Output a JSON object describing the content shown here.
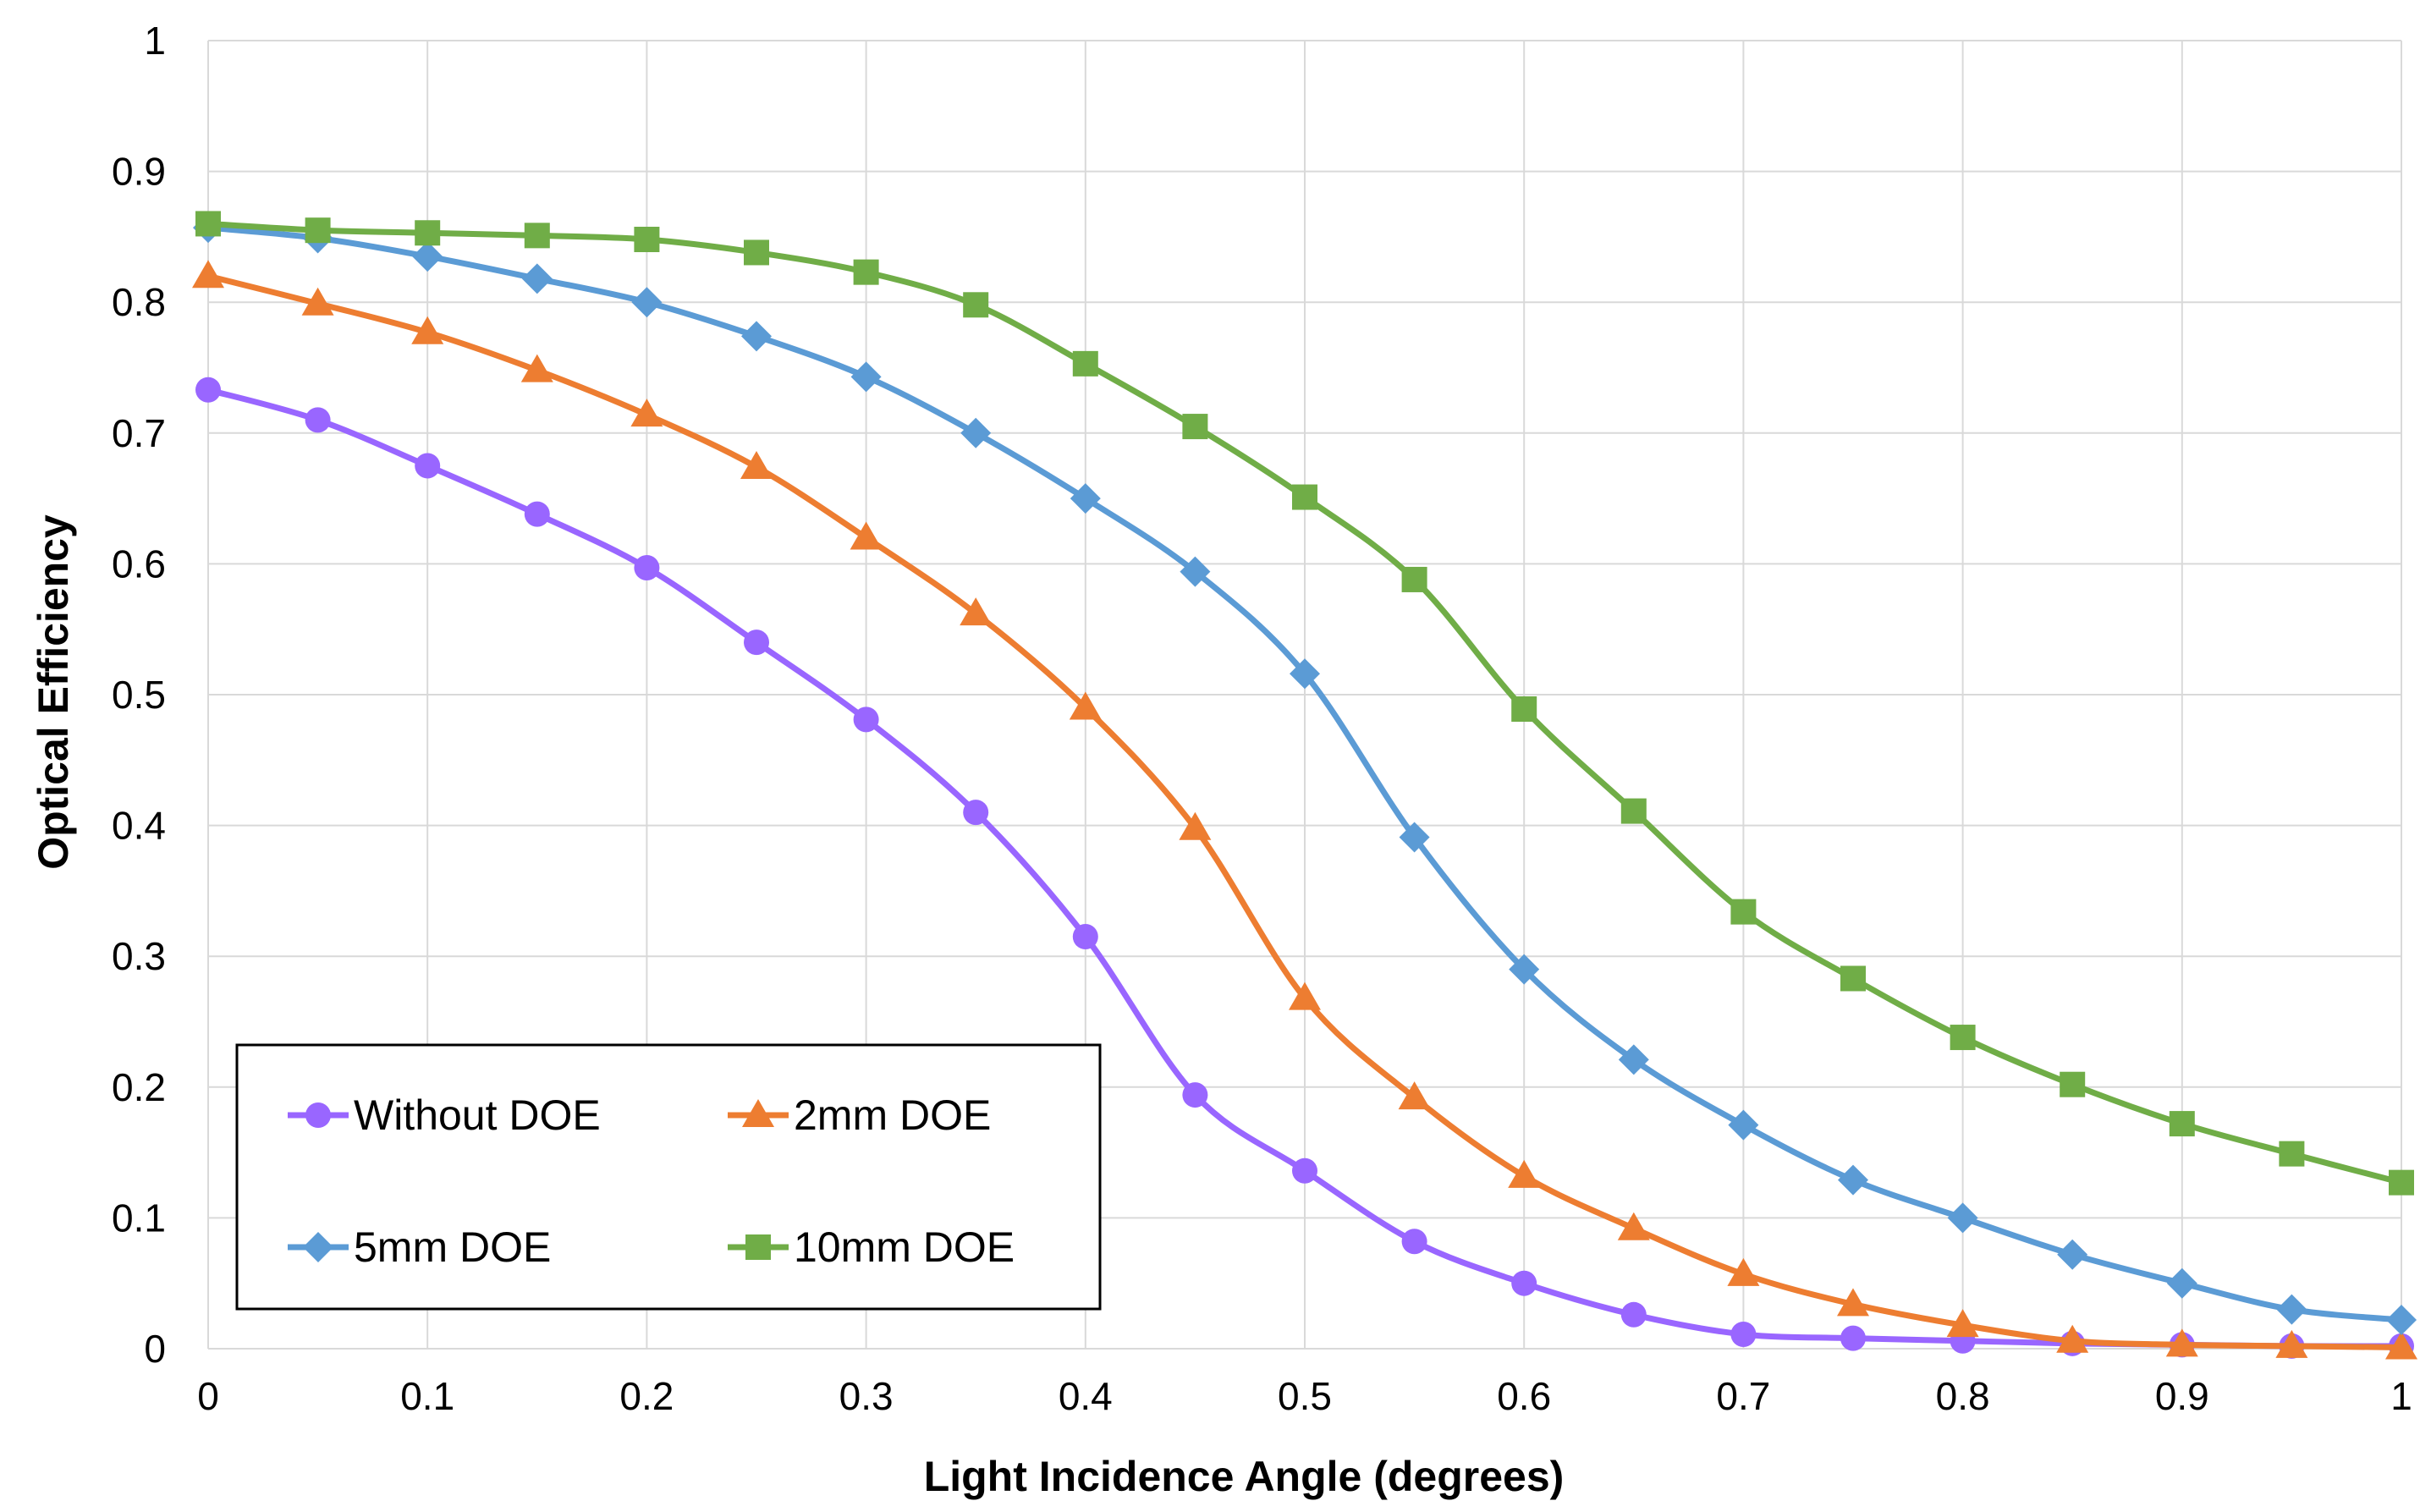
{
  "chart_data": {
    "type": "line",
    "title": "",
    "xlabel": "Light Incidence Angle (degrees)",
    "ylabel": "Optical Efficiency",
    "xlim": [
      0,
      1
    ],
    "ylim": [
      0,
      1
    ],
    "grid": true,
    "legend_position": "bottom-left",
    "x": [
      0,
      0.05,
      0.1,
      0.15,
      0.2,
      0.25,
      0.3,
      0.35,
      0.4,
      0.45,
      0.5,
      0.55,
      0.6,
      0.65,
      0.7,
      0.75,
      0.8,
      0.85,
      0.9,
      0.95,
      1
    ],
    "x_tick_labels": [
      "0",
      "0.1",
      "0.2",
      "0.3",
      "0.4",
      "0.5",
      "0.6",
      "0.7",
      "0.8",
      "0.9",
      "1"
    ],
    "y_tick_labels": [
      "0",
      "0.1",
      "0.2",
      "0.3",
      "0.4",
      "0.5",
      "0.6",
      "0.7",
      "0.8",
      "0.9",
      "1"
    ],
    "series": [
      {
        "name": "Without DOE",
        "color": "#9966ff",
        "marker": "circle",
        "values": [
          0.733,
          0.71,
          0.675,
          0.638,
          0.597,
          0.54,
          0.481,
          0.41,
          0.315,
          0.194,
          0.136,
          0.082,
          0.05,
          0.026,
          0.011,
          0.008,
          0.006,
          0.004,
          0.003,
          0.002,
          0.002
        ]
      },
      {
        "name": "2mm DOE",
        "color": "#ed7d31",
        "marker": "triangle",
        "values": [
          0.82,
          0.799,
          0.777,
          0.748,
          0.714,
          0.674,
          0.62,
          0.562,
          0.49,
          0.398,
          0.268,
          0.192,
          0.132,
          0.092,
          0.057,
          0.034,
          0.018,
          0.006,
          0.003,
          0.002,
          0.001
        ]
      },
      {
        "name": "5mm DOE",
        "color": "#5b9bd5",
        "marker": "diamond",
        "values": [
          0.857,
          0.849,
          0.835,
          0.818,
          0.8,
          0.774,
          0.743,
          0.7,
          0.65,
          0.594,
          0.516,
          0.391,
          0.29,
          0.221,
          0.171,
          0.129,
          0.1,
          0.072,
          0.05,
          0.03,
          0.022
        ]
      },
      {
        "name": "10mm DOE",
        "color": "#70ad47",
        "marker": "square",
        "values": [
          0.86,
          0.855,
          0.853,
          0.851,
          0.848,
          0.838,
          0.823,
          0.798,
          0.753,
          0.705,
          0.651,
          0.588,
          0.489,
          0.411,
          0.334,
          0.283,
          0.238,
          0.202,
          0.172,
          0.149,
          0.127
        ]
      }
    ]
  }
}
